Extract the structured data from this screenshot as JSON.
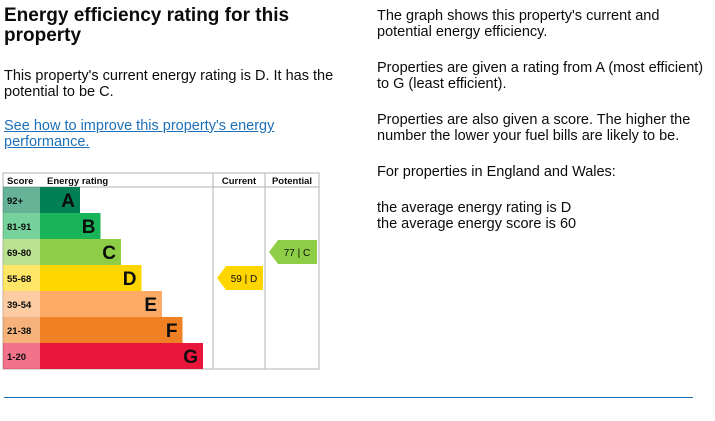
{
  "heading": "Energy efficiency rating for this property",
  "current_rating_text": "This property's current energy rating is D. It has the potential to be C.",
  "improve_link": "See how to improve this property's energy performance.",
  "right_panel": {
    "p1": "The graph shows this property's current and potential energy efficiency.",
    "p2": "Properties are given a rating from A (most efficient) to G (least efficient).",
    "p3": "Properties are also given a score. The higher the number the lower your fuel bills are likely to be.",
    "p4": "For properties in England and Wales:",
    "p5": "the average energy rating is D",
    "p6": "the average energy score is 60"
  },
  "colors": {
    "A": "#008054",
    "B": "#19b459",
    "C": "#8dce46",
    "D": "#ffd500",
    "E": "#fcaa65",
    "F": "#ef8023",
    "G": "#e9153b",
    "link": "#1d70b8"
  },
  "chart_data": {
    "type": "table",
    "headers": {
      "score": "Score",
      "rating": "Energy rating",
      "current": "Current",
      "potential": "Potential"
    },
    "bands": [
      {
        "range": "92+",
        "letter": "A"
      },
      {
        "range": "81-91",
        "letter": "B"
      },
      {
        "range": "69-80",
        "letter": "C"
      },
      {
        "range": "55-68",
        "letter": "D"
      },
      {
        "range": "39-54",
        "letter": "E"
      },
      {
        "range": "21-38",
        "letter": "F"
      },
      {
        "range": "1-20",
        "letter": "G"
      }
    ],
    "current": {
      "score": 59,
      "letter": "D",
      "label": "59 |  D"
    },
    "potential": {
      "score": 77,
      "letter": "C",
      "label": "77 |  C"
    }
  }
}
